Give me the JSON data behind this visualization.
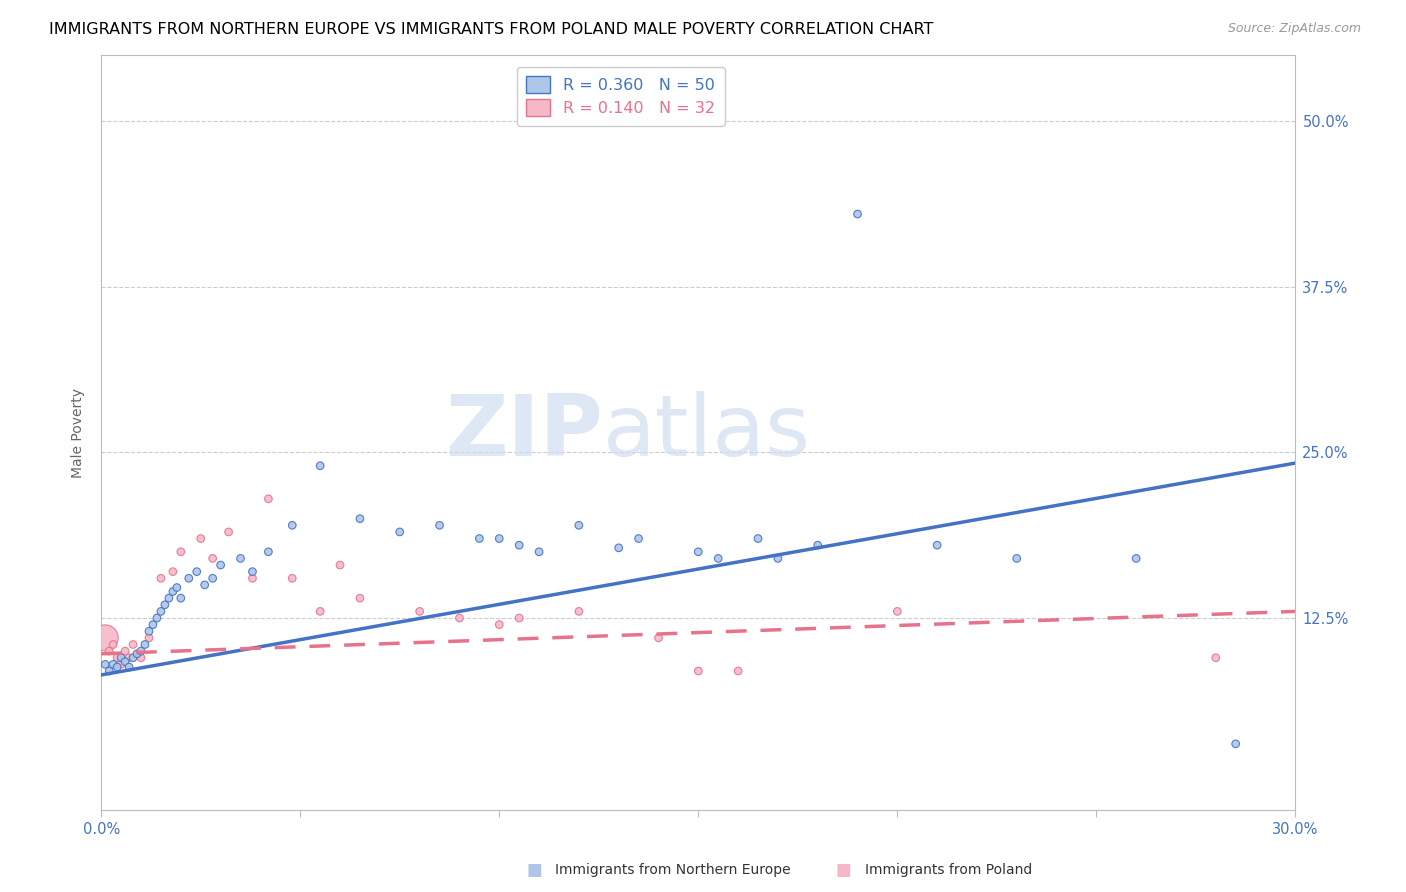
{
  "title": "IMMIGRANTS FROM NORTHERN EUROPE VS IMMIGRANTS FROM POLAND MALE POVERTY CORRELATION CHART",
  "source": "Source: ZipAtlas.com",
  "ylabel": "Male Poverty",
  "xlim": [
    0.0,
    0.3
  ],
  "ylim": [
    -0.02,
    0.55
  ],
  "yticks": [
    0.125,
    0.25,
    0.375,
    0.5
  ],
  "ytick_labels": [
    "12.5%",
    "25.0%",
    "37.5%",
    "50.0%"
  ],
  "xticks": [
    0.0,
    0.05,
    0.1,
    0.15,
    0.2,
    0.25,
    0.3
  ],
  "xtick_labels": [
    "0.0%",
    "",
    "",
    "",
    "",
    "",
    "30.0%"
  ],
  "color_blue": "#aec6e8",
  "color_pink": "#f5b8c8",
  "color_blue_dark": "#4472c4",
  "color_pink_dark": "#e8728a",
  "color_axis": "#bbbbbb",
  "color_grid": "#cccccc",
  "blue_scatter_x": [
    0.001,
    0.002,
    0.003,
    0.004,
    0.005,
    0.006,
    0.007,
    0.008,
    0.009,
    0.01,
    0.011,
    0.012,
    0.013,
    0.014,
    0.015,
    0.016,
    0.017,
    0.018,
    0.019,
    0.02,
    0.022,
    0.024,
    0.026,
    0.028,
    0.03,
    0.035,
    0.038,
    0.042,
    0.048,
    0.055,
    0.065,
    0.075,
    0.085,
    0.095,
    0.105,
    0.12,
    0.135,
    0.15,
    0.165,
    0.18,
    0.1,
    0.11,
    0.13,
    0.155,
    0.17,
    0.19,
    0.21,
    0.23,
    0.26,
    0.285
  ],
  "blue_scatter_y": [
    0.09,
    0.085,
    0.09,
    0.088,
    0.095,
    0.092,
    0.088,
    0.095,
    0.098,
    0.1,
    0.105,
    0.115,
    0.12,
    0.125,
    0.13,
    0.135,
    0.14,
    0.145,
    0.148,
    0.14,
    0.155,
    0.16,
    0.15,
    0.155,
    0.165,
    0.17,
    0.16,
    0.175,
    0.195,
    0.24,
    0.2,
    0.19,
    0.195,
    0.185,
    0.18,
    0.195,
    0.185,
    0.175,
    0.185,
    0.18,
    0.185,
    0.175,
    0.178,
    0.17,
    0.17,
    0.43,
    0.18,
    0.17,
    0.17,
    0.03
  ],
  "blue_sizes": [
    30,
    30,
    30,
    30,
    30,
    30,
    30,
    30,
    30,
    30,
    30,
    30,
    30,
    30,
    30,
    30,
    30,
    30,
    30,
    30,
    30,
    30,
    30,
    30,
    30,
    30,
    30,
    30,
    30,
    30,
    30,
    30,
    30,
    30,
    30,
    30,
    30,
    30,
    30,
    30,
    30,
    30,
    30,
    30,
    30,
    30,
    30,
    30,
    30,
    30
  ],
  "pink_scatter_x": [
    0.001,
    0.002,
    0.003,
    0.004,
    0.005,
    0.006,
    0.007,
    0.008,
    0.01,
    0.012,
    0.015,
    0.018,
    0.02,
    0.025,
    0.028,
    0.032,
    0.038,
    0.042,
    0.048,
    0.055,
    0.06,
    0.065,
    0.08,
    0.09,
    0.1,
    0.105,
    0.12,
    0.14,
    0.15,
    0.16,
    0.2,
    0.28
  ],
  "pink_scatter_y": [
    0.11,
    0.1,
    0.105,
    0.095,
    0.09,
    0.1,
    0.095,
    0.105,
    0.095,
    0.11,
    0.155,
    0.16,
    0.175,
    0.185,
    0.17,
    0.19,
    0.155,
    0.215,
    0.155,
    0.13,
    0.165,
    0.14,
    0.13,
    0.125,
    0.12,
    0.125,
    0.13,
    0.11,
    0.085,
    0.085,
    0.13,
    0.095
  ],
  "pink_sizes": [
    350,
    30,
    30,
    30,
    30,
    30,
    30,
    30,
    30,
    30,
    30,
    30,
    30,
    30,
    30,
    30,
    30,
    30,
    30,
    30,
    30,
    30,
    30,
    30,
    30,
    30,
    30,
    30,
    30,
    30,
    30,
    30
  ],
  "blue_trend_x": [
    0.0,
    0.3
  ],
  "blue_trend_y": [
    0.082,
    0.242
  ],
  "pink_trend_x": [
    0.0,
    0.3
  ],
  "pink_trend_y": [
    0.098,
    0.13
  ],
  "watermark_zip": "ZIP",
  "watermark_atlas": "atlas",
  "title_fontsize": 11.5,
  "label_fontsize": 10,
  "tick_fontsize": 10.5
}
